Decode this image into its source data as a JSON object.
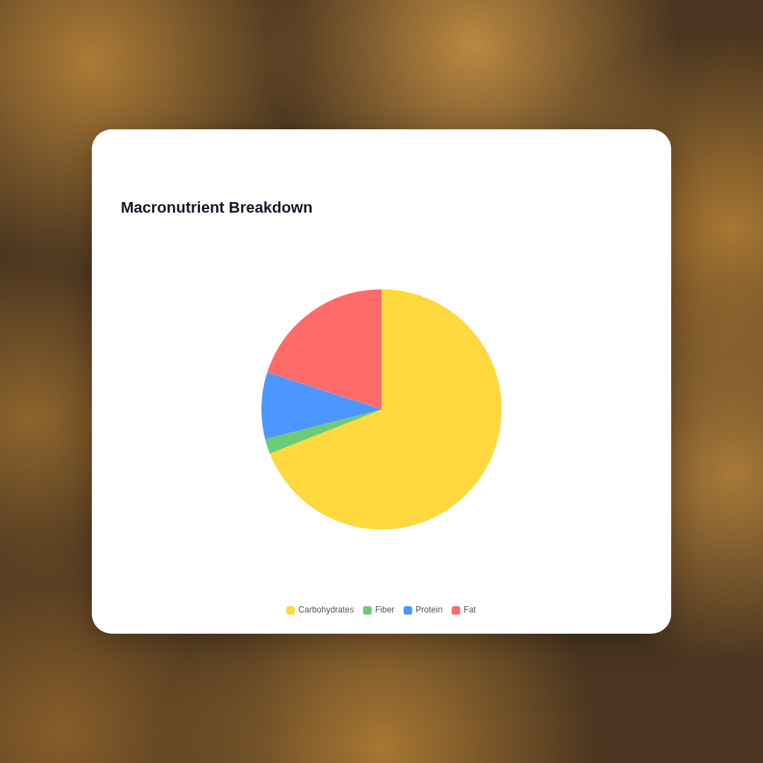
{
  "chart_data": {
    "type": "pie",
    "title": "Macronutrient Breakdown",
    "categories": [
      "Carbohydrates",
      "Fiber",
      "Protein",
      "Fat"
    ],
    "values": [
      69,
      2,
      9,
      20
    ],
    "colors": [
      "#ffd93d",
      "#6bcb77",
      "#4d96ff",
      "#ff6b6b"
    ],
    "legend": "bottom"
  }
}
